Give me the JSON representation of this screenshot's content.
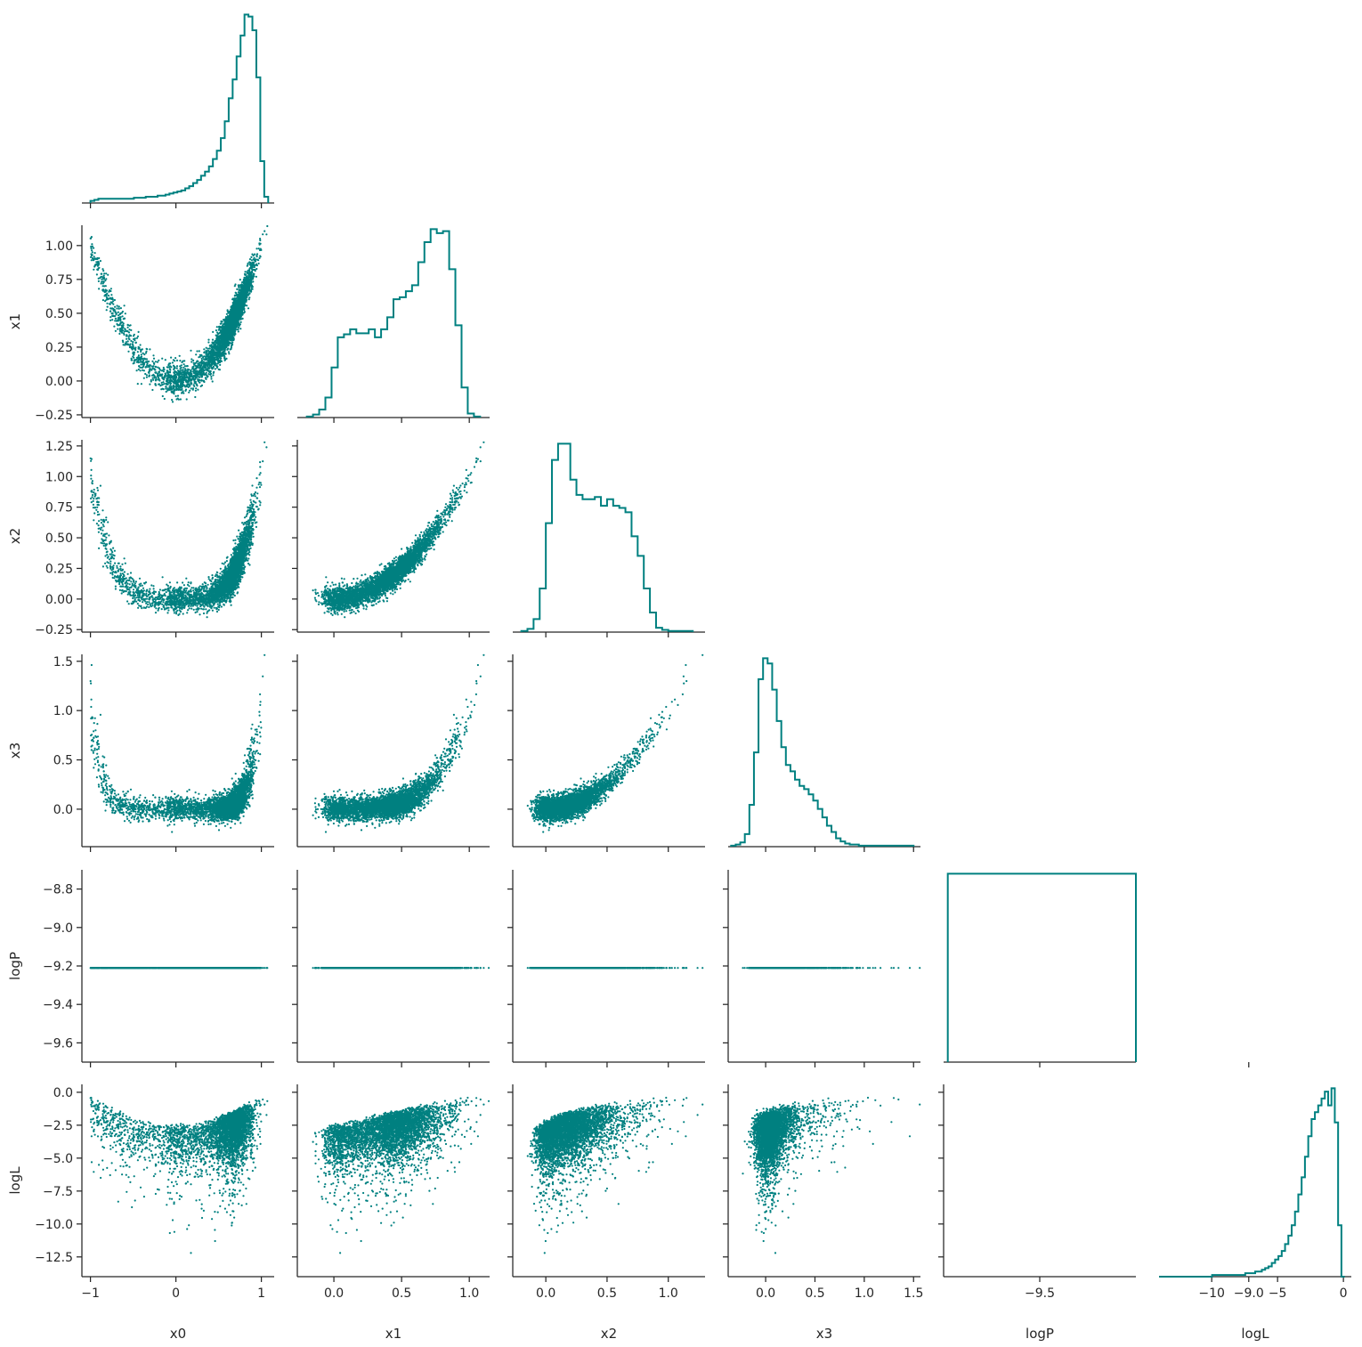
{
  "chart_data": {
    "type": "scatter",
    "title": "",
    "color": "#008080",
    "variables": [
      "x0",
      "x1",
      "x2",
      "x3",
      "logP",
      "logL"
    ],
    "ranges": {
      "x0": [
        -1.1,
        1.15
      ],
      "x1": [
        -0.27,
        1.15
      ],
      "x2": [
        -0.27,
        1.3
      ],
      "x3": [
        -0.38,
        1.57
      ],
      "logP": [
        -9.73,
        -9.27
      ],
      "logL": [
        -14.0,
        0.6
      ]
    },
    "ylims": {
      "x1": [
        -0.27,
        1.15
      ],
      "x2": [
        -0.27,
        1.3
      ],
      "x3": [
        -0.38,
        1.57
      ],
      "logP": [
        -9.7,
        -8.7
      ],
      "logL": [
        -14.0,
        0.6
      ]
    },
    "ticks": {
      "x0": [
        -1,
        0,
        1
      ],
      "x1": [
        0.0,
        0.5,
        1.0
      ],
      "x2": [
        0.0,
        0.5,
        1.0
      ],
      "x3": [
        0.0,
        0.5,
        1.0,
        1.5
      ],
      "logP": [
        -9.5,
        -9.0
      ],
      "logL": [
        -10,
        -5,
        0
      ]
    },
    "yticks": {
      "x1": [
        -0.25,
        0.0,
        0.25,
        0.5,
        0.75,
        1.0
      ],
      "x2": [
        -0.25,
        0.0,
        0.25,
        0.5,
        0.75,
        1.0,
        1.25
      ],
      "x3": [
        0.0,
        0.5,
        1.0,
        1.5
      ],
      "logP": [
        -9.6,
        -9.4,
        -9.2,
        -9.0,
        -8.8
      ],
      "logL": [
        -12.5,
        -10.0,
        -7.5,
        -5.0,
        -2.5,
        0.0
      ]
    },
    "tick_labels": {
      "x0": [
        "−1",
        "0",
        "1"
      ],
      "x1": [
        "0.0",
        "0.5",
        "1.0"
      ],
      "x2": [
        "0.0",
        "0.5",
        "1.0"
      ],
      "x3": [
        "0.0",
        "0.5",
        "1.0",
        "1.5"
      ],
      "logP": [
        "−9.5",
        "−9.0"
      ],
      "logL": [
        "−10",
        "−5",
        "0"
      ]
    },
    "ytick_labels": {
      "x1": [
        "−0.25",
        "0.00",
        "0.25",
        "0.50",
        "0.75",
        "1.00"
      ],
      "x2": [
        "−0.25",
        "0.00",
        "0.25",
        "0.50",
        "0.75",
        "1.00",
        "1.25"
      ],
      "x3": [
        "0.0",
        "0.5",
        "1.0",
        "1.5"
      ],
      "logP": [
        "−9.6",
        "−9.4",
        "−9.2",
        "−9.0",
        "−8.8"
      ],
      "logL": [
        "−12.5",
        "−10.0",
        "−7.5",
        "−5.0",
        "−2.5",
        "0.0"
      ]
    },
    "logP_constant": -9.21,
    "diagonal_histograms": {
      "x0": {
        "edges": [
          -1.0,
          1.08
        ],
        "heights": [
          2,
          3,
          4,
          4,
          4,
          4,
          4,
          4,
          4,
          4,
          4,
          5,
          5,
          5,
          6,
          6,
          6,
          7,
          7,
          8,
          9,
          10,
          11,
          12,
          14,
          16,
          19,
          22,
          26,
          30,
          35,
          42,
          50,
          62,
          78,
          100,
          118,
          140,
          160,
          180,
          178,
          165,
          120,
          40,
          6
        ]
      },
      "x1": {
        "edges": [
          -0.2,
          1.08
        ],
        "heights": [
          1,
          3,
          8,
          20,
          50,
          80,
          83,
          88,
          84,
          84,
          88,
          80,
          88,
          100,
          118,
          120,
          126,
          132,
          155,
          175,
          188,
          184,
          186,
          148,
          92,
          30,
          4,
          1
        ]
      },
      "x2": {
        "edges": [
          -0.2,
          1.2
        ],
        "heights": [
          1,
          3,
          12,
          40,
          100,
          158,
          173,
          173,
          140,
          126,
          122,
          122,
          124,
          116,
          122,
          116,
          114,
          110,
          88,
          70,
          40,
          18,
          4,
          2,
          1,
          1,
          1,
          1
        ]
      },
      "x3": {
        "edges": [
          -0.35,
          1.5
        ],
        "heights": [
          1,
          2,
          4,
          12,
          40,
          90,
          160,
          180,
          175,
          150,
          120,
          95,
          78,
          72,
          64,
          58,
          55,
          50,
          44,
          36,
          28,
          20,
          14,
          8,
          5,
          3,
          2,
          2,
          1,
          1,
          1,
          1,
          1,
          1,
          1,
          1,
          1,
          1,
          1,
          1
        ]
      },
      "logP": {
        "edges": [
          -9.72,
          -9.27
        ],
        "heights": [
          1
        ]
      },
      "logL": {
        "edges": [
          -14.0,
          0.1
        ],
        "heights": [
          0,
          0,
          0,
          0,
          0,
          0,
          0,
          0,
          0,
          0,
          0,
          0,
          0,
          0,
          0,
          0,
          1,
          1,
          1,
          1,
          1,
          1,
          1,
          1,
          1,
          1,
          2,
          2,
          2,
          3,
          3,
          4,
          5,
          6,
          8,
          10,
          12,
          15,
          19,
          24,
          30,
          38,
          48,
          58,
          70,
          82,
          92,
          96,
          100,
          104,
          108,
          100,
          110,
          90,
          30,
          0
        ]
      }
    }
  }
}
